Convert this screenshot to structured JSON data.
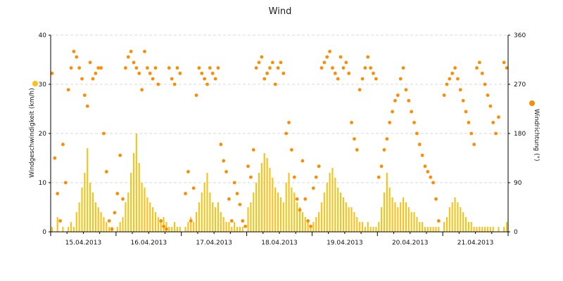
{
  "chart_data": {
    "type": "line",
    "title": "Wind",
    "y_left": {
      "label": "Windgeschwindigkeit (km/h)",
      "min": 0,
      "max": 40,
      "ticks": [
        0,
        10,
        20,
        30,
        40
      ]
    },
    "y_right": {
      "label": "Windrichtung (°)",
      "min": 0,
      "max": 360,
      "ticks": [
        0,
        90,
        180,
        270,
        360
      ]
    },
    "x_axis": {
      "min": "15.04.2013 00:00",
      "max": "22.04.2013 00:00",
      "day_labels": [
        "15.04.2013",
        "16.04.2013",
        "17.04.2013",
        "18.04.2013",
        "19.04.2013",
        "20.04.2013",
        "21.04.2013"
      ]
    },
    "grid": true,
    "legend_placement": "left and right of plot",
    "series": [
      {
        "type": "bar",
        "color": "#f7c31a",
        "axis": "left",
        "x_hours": [
          0,
          2,
          4,
          6,
          7,
          8,
          9,
          10,
          11,
          12,
          13,
          14,
          15,
          16,
          17,
          18,
          19,
          20,
          21,
          22,
          23,
          24,
          25,
          26,
          27,
          28,
          29,
          30,
          31,
          32,
          33,
          34,
          35,
          36,
          37,
          38,
          39,
          40,
          41,
          42,
          43,
          44,
          45,
          46,
          47,
          49,
          50,
          51,
          52,
          53,
          54,
          55,
          56,
          57,
          58,
          59,
          60,
          61,
          62,
          63,
          64,
          65,
          66,
          67,
          68,
          69,
          70,
          71,
          72,
          73,
          74,
          75,
          76,
          77,
          78,
          79,
          80,
          81,
          82,
          83,
          84,
          85,
          86,
          87,
          88,
          89,
          90,
          91,
          92,
          93,
          94,
          95,
          96,
          97,
          98,
          99,
          100,
          101,
          102,
          103,
          104,
          105,
          106,
          107,
          108,
          109,
          110,
          111,
          112,
          113,
          114,
          115,
          116,
          117,
          118,
          119,
          120,
          121,
          122,
          123,
          124,
          125,
          126,
          127,
          128,
          129,
          130,
          131,
          132,
          133,
          134,
          135,
          136,
          137,
          138,
          139,
          140,
          141,
          142,
          144,
          145,
          146,
          147,
          148,
          149,
          150,
          151,
          152,
          153,
          154,
          155,
          156,
          157,
          158,
          159,
          160,
          161,
          162,
          163,
          164,
          166,
          167
        ],
        "values": [
          1,
          3,
          1,
          1,
          2,
          1,
          4,
          6,
          9,
          12,
          17,
          10,
          8,
          6,
          5,
          4,
          3,
          2,
          1,
          1,
          0,
          1,
          2,
          3,
          6,
          8,
          12,
          16,
          20,
          14,
          10,
          9,
          7,
          6,
          5,
          4,
          3,
          2,
          3,
          2,
          1,
          1,
          2,
          1,
          1,
          1,
          2,
          3,
          2,
          4,
          6,
          8,
          10,
          12,
          8,
          6,
          5,
          6,
          4,
          3,
          2,
          2,
          1,
          2,
          1,
          1,
          1,
          0,
          5,
          6,
          8,
          10,
          12,
          14,
          16,
          15,
          13,
          11,
          9,
          8,
          7,
          6,
          10,
          12,
          9,
          8,
          6,
          5,
          4,
          3,
          2,
          1,
          2,
          3,
          4,
          6,
          8,
          10,
          12,
          13,
          11,
          9,
          8,
          7,
          6,
          5,
          5,
          4,
          3,
          2,
          2,
          1,
          2,
          1,
          1,
          1,
          2,
          5,
          8,
          12,
          9,
          7,
          6,
          5,
          6,
          7,
          6,
          5,
          4,
          4,
          3,
          2,
          2,
          1,
          1,
          1,
          1,
          1,
          1,
          2,
          3,
          5,
          6,
          7,
          6,
          5,
          4,
          3,
          2,
          2,
          1,
          1,
          1,
          1,
          1,
          1,
          1,
          1,
          0,
          1,
          1,
          2
        ]
      },
      {
        "type": "scatter",
        "color": "#ff8c00",
        "axis": "right",
        "x_hours": [
          0,
          1,
          2,
          3,
          4,
          5,
          6,
          7,
          8,
          9,
          10,
          11,
          12,
          13,
          14,
          15,
          16,
          17,
          18,
          19,
          20,
          21,
          22,
          23,
          24,
          25,
          26,
          27,
          28,
          29,
          30,
          31,
          32,
          33,
          34,
          35,
          36,
          37,
          38,
          39,
          40,
          41,
          42,
          43,
          44,
          45,
          46,
          47,
          49,
          50,
          51,
          52,
          53,
          54,
          55,
          56,
          57,
          58,
          59,
          60,
          61,
          62,
          63,
          64,
          65,
          66,
          67,
          68,
          69,
          70,
          71,
          72,
          73,
          74,
          75,
          76,
          77,
          78,
          79,
          80,
          81,
          82,
          83,
          84,
          85,
          86,
          87,
          88,
          89,
          90,
          91,
          92,
          93,
          94,
          95,
          96,
          97,
          98,
          99,
          100,
          101,
          102,
          103,
          104,
          105,
          106,
          107,
          108,
          109,
          110,
          111,
          112,
          113,
          114,
          115,
          116,
          117,
          118,
          119,
          120,
          121,
          122,
          123,
          124,
          125,
          126,
          127,
          128,
          129,
          130,
          131,
          132,
          133,
          134,
          135,
          136,
          137,
          138,
          139,
          140,
          141,
          142,
          144,
          145,
          146,
          147,
          148,
          149,
          150,
          151,
          152,
          153,
          154,
          155,
          156,
          157,
          158,
          159,
          160,
          161,
          162,
          163,
          164,
          166,
          167
        ],
        "values": [
          290,
          135,
          70,
          20,
          160,
          90,
          260,
          300,
          330,
          320,
          300,
          280,
          250,
          230,
          310,
          280,
          290,
          300,
          300,
          180,
          110,
          20,
          5,
          35,
          70,
          140,
          60,
          300,
          320,
          330,
          310,
          300,
          290,
          260,
          330,
          300,
          290,
          280,
          300,
          270,
          20,
          10,
          5,
          300,
          280,
          270,
          300,
          290,
          70,
          110,
          20,
          80,
          250,
          300,
          290,
          280,
          270,
          300,
          290,
          280,
          300,
          160,
          130,
          110,
          60,
          20,
          90,
          70,
          50,
          20,
          10,
          120,
          100,
          150,
          300,
          310,
          320,
          280,
          290,
          300,
          310,
          270,
          300,
          310,
          290,
          180,
          200,
          150,
          100,
          60,
          40,
          130,
          60,
          20,
          10,
          80,
          100,
          120,
          300,
          310,
          320,
          330,
          300,
          290,
          280,
          320,
          300,
          310,
          290,
          200,
          170,
          150,
          260,
          280,
          300,
          320,
          300,
          290,
          280,
          100,
          120,
          150,
          170,
          200,
          220,
          240,
          250,
          280,
          300,
          260,
          240,
          220,
          200,
          180,
          160,
          140,
          120,
          110,
          100,
          90,
          60,
          20,
          250,
          270,
          280,
          290,
          300,
          280,
          260,
          240,
          220,
          200,
          180,
          160,
          300,
          310,
          290,
          270,
          250,
          230,
          200,
          180,
          210,
          310,
          300
        ]
      }
    ]
  },
  "colors": {
    "speed_bars": "#f7c31a",
    "direction_points": "#ff8c00",
    "gridline": "#d8d8d8"
  }
}
